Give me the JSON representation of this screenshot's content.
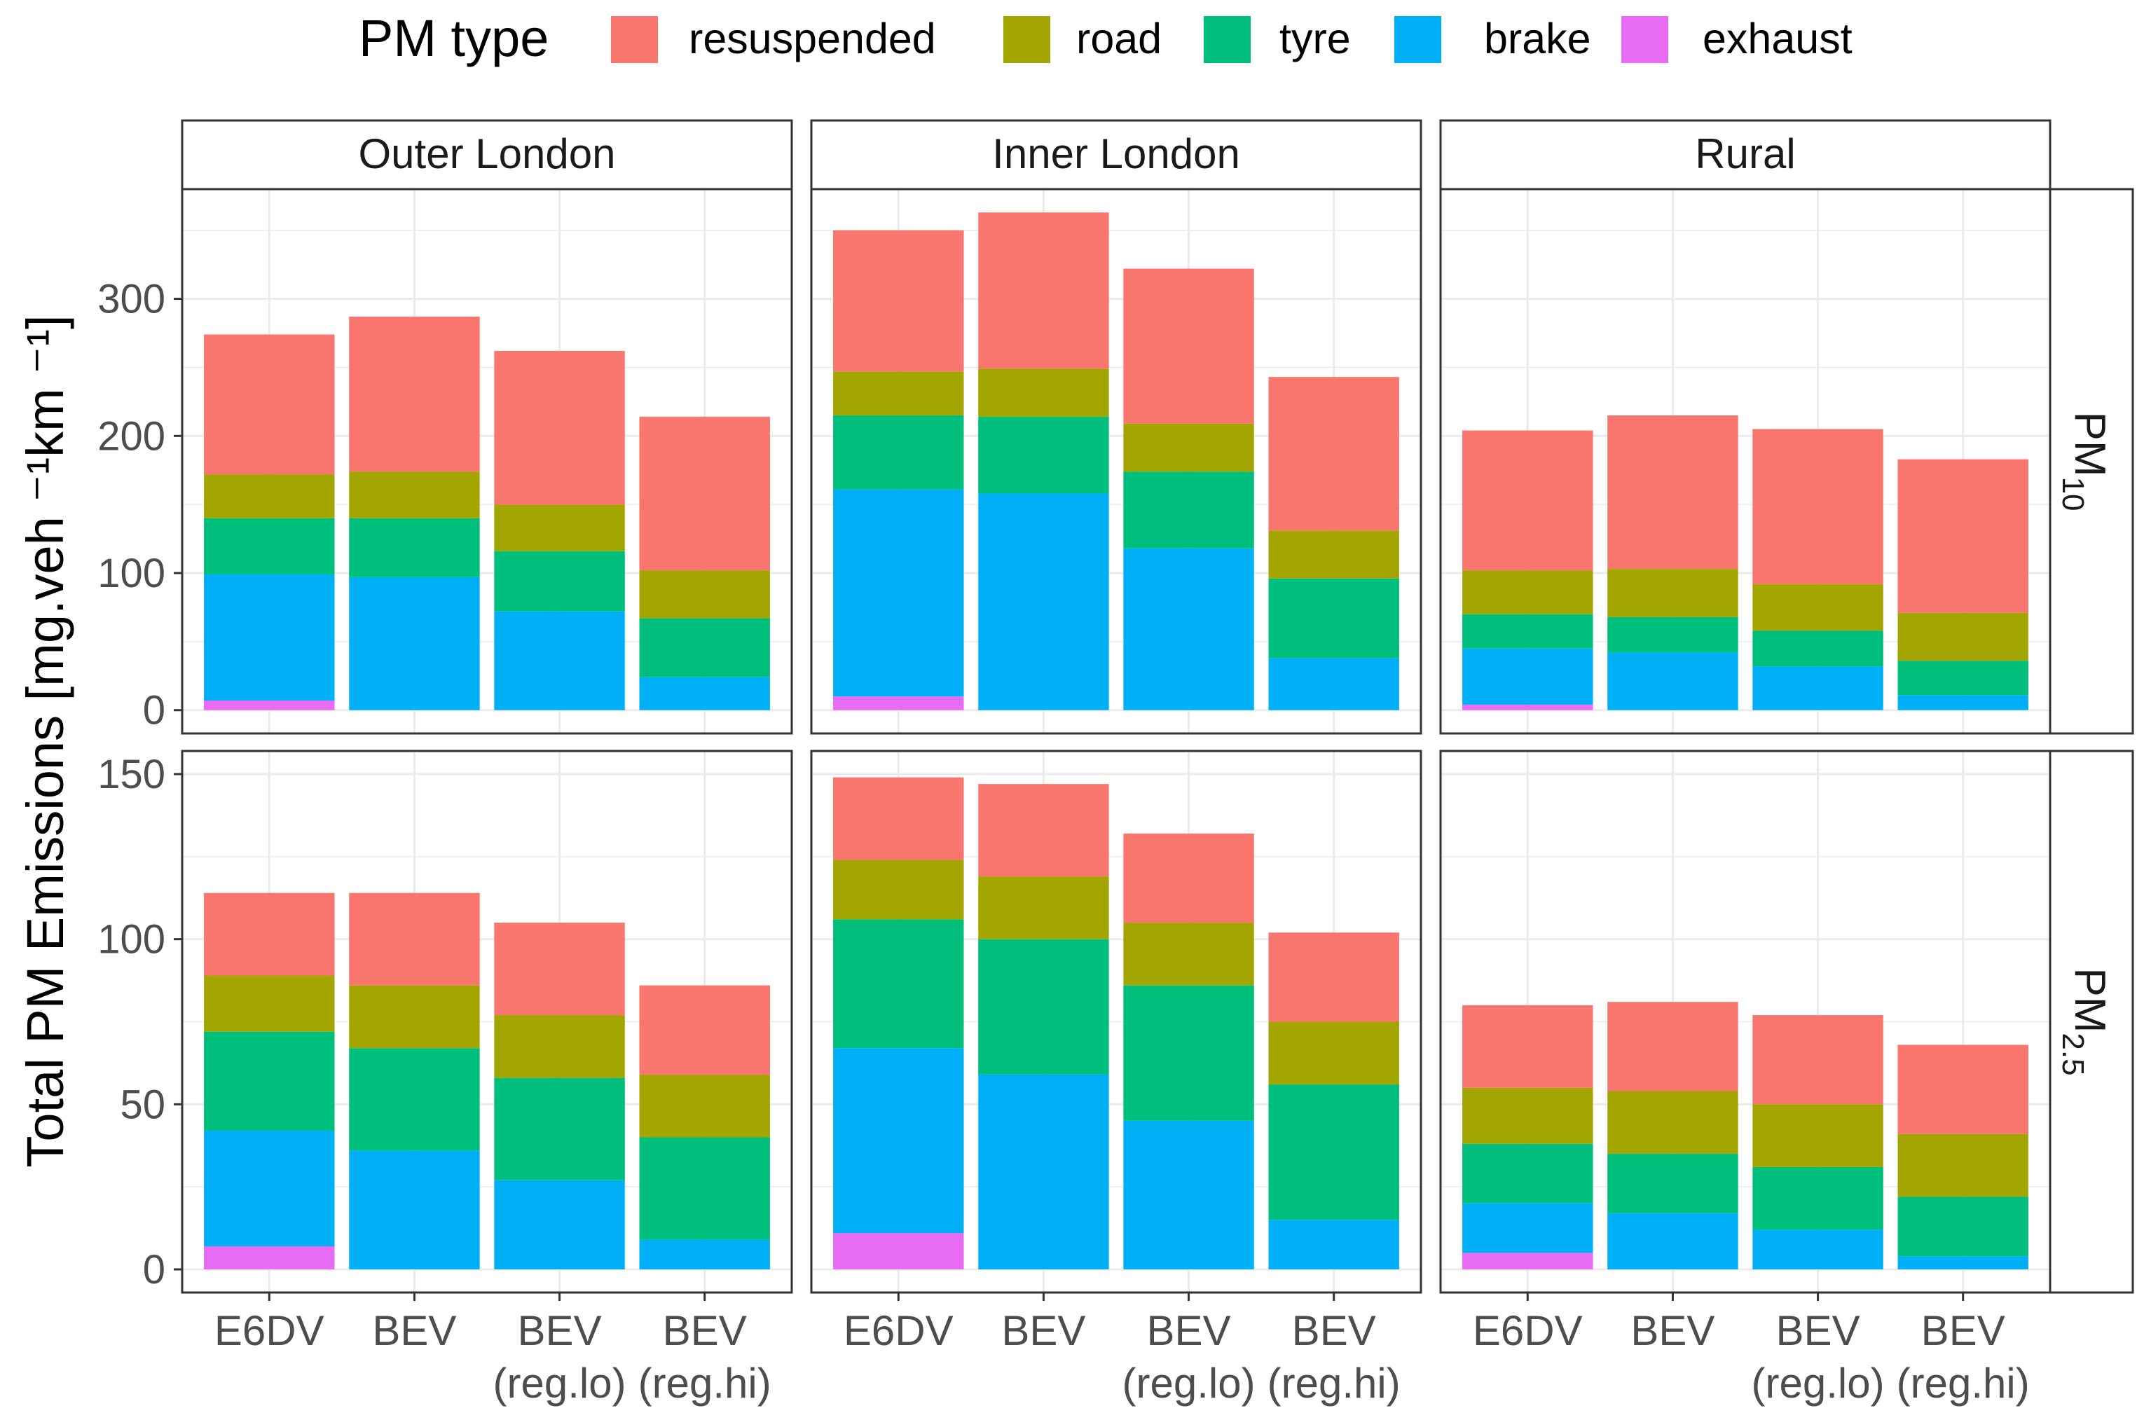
{
  "chart_data": {
    "type": "bar",
    "stacked": true,
    "title": "",
    "ylabel": "Total PM Emissions [mg.veh ⁻¹km ⁻¹]",
    "xlabel": "",
    "legend": {
      "title": "PM type",
      "position": "top",
      "entries": [
        {
          "name": "resuspended",
          "color": "#F8766D"
        },
        {
          "name": "road",
          "color": "#A3A500"
        },
        {
          "name": "tyre",
          "color": "#00BF7D"
        },
        {
          "name": "brake",
          "color": "#00B0F6"
        },
        {
          "name": "exhaust",
          "color": "#E76BF3"
        }
      ]
    },
    "stack_order": [
      "exhaust",
      "brake",
      "tyre",
      "road",
      "resuspended"
    ],
    "facet_columns": [
      "Outer London",
      "Inner London",
      "Rural"
    ],
    "facet_rows": [
      {
        "base": "PM",
        "sub": "10",
        "ylim": [
          -17,
          380
        ],
        "ticks": [
          0,
          100,
          200,
          300
        ]
      },
      {
        "base": "PM",
        "sub": "2.5",
        "ylim": [
          -7,
          157
        ],
        "ticks": [
          0,
          50,
          100,
          150
        ]
      }
    ],
    "categories": [
      {
        "line1": "E6DV",
        "line2": ""
      },
      {
        "line1": "BEV",
        "line2": ""
      },
      {
        "line1": "BEV",
        "line2": "(reg.lo)"
      },
      {
        "line1": "BEV",
        "line2": "(reg.hi)"
      }
    ],
    "grid": true,
    "panels": [
      {
        "row": 0,
        "col": 0,
        "bars": [
          {
            "exhaust": 7,
            "brake": 92,
            "tyre": 41,
            "road": 32,
            "resuspended": 102
          },
          {
            "exhaust": 0,
            "brake": 97,
            "tyre": 43,
            "road": 34,
            "resuspended": 113
          },
          {
            "exhaust": 0,
            "brake": 72,
            "tyre": 44,
            "road": 34,
            "resuspended": 112
          },
          {
            "exhaust": 0,
            "brake": 24,
            "tyre": 43,
            "road": 35,
            "resuspended": 112
          }
        ]
      },
      {
        "row": 0,
        "col": 1,
        "bars": [
          {
            "exhaust": 10,
            "brake": 151,
            "tyre": 54,
            "road": 32,
            "resuspended": 103
          },
          {
            "exhaust": 0,
            "brake": 158,
            "tyre": 56,
            "road": 35,
            "resuspended": 114
          },
          {
            "exhaust": 0,
            "brake": 118,
            "tyre": 56,
            "road": 35,
            "resuspended": 113
          },
          {
            "exhaust": 0,
            "brake": 38,
            "tyre": 58,
            "road": 35,
            "resuspended": 112
          }
        ]
      },
      {
        "row": 0,
        "col": 2,
        "bars": [
          {
            "exhaust": 4,
            "brake": 41,
            "tyre": 25,
            "road": 32,
            "resuspended": 102
          },
          {
            "exhaust": 0,
            "brake": 42,
            "tyre": 26,
            "road": 35,
            "resuspended": 112
          },
          {
            "exhaust": 0,
            "brake": 32,
            "tyre": 26,
            "road": 34,
            "resuspended": 113
          },
          {
            "exhaust": 0,
            "brake": 11,
            "tyre": 25,
            "road": 35,
            "resuspended": 112
          }
        ]
      },
      {
        "row": 1,
        "col": 0,
        "bars": [
          {
            "exhaust": 7,
            "brake": 35,
            "tyre": 30,
            "road": 17,
            "resuspended": 25
          },
          {
            "exhaust": 0,
            "brake": 36,
            "tyre": 31,
            "road": 19,
            "resuspended": 28
          },
          {
            "exhaust": 0,
            "brake": 27,
            "tyre": 31,
            "road": 19,
            "resuspended": 28
          },
          {
            "exhaust": 0,
            "brake": 9,
            "tyre": 31,
            "road": 19,
            "resuspended": 27
          }
        ]
      },
      {
        "row": 1,
        "col": 1,
        "bars": [
          {
            "exhaust": 11,
            "brake": 56,
            "tyre": 39,
            "road": 18,
            "resuspended": 25
          },
          {
            "exhaust": 0,
            "brake": 59,
            "tyre": 41,
            "road": 19,
            "resuspended": 28
          },
          {
            "exhaust": 0,
            "brake": 45,
            "tyre": 41,
            "road": 19,
            "resuspended": 27
          },
          {
            "exhaust": 0,
            "brake": 15,
            "tyre": 41,
            "road": 19,
            "resuspended": 27
          }
        ]
      },
      {
        "row": 1,
        "col": 2,
        "bars": [
          {
            "exhaust": 5,
            "brake": 15,
            "tyre": 18,
            "road": 17,
            "resuspended": 25
          },
          {
            "exhaust": 0,
            "brake": 17,
            "tyre": 18,
            "road": 19,
            "resuspended": 27
          },
          {
            "exhaust": 0,
            "brake": 12,
            "tyre": 19,
            "road": 19,
            "resuspended": 27
          },
          {
            "exhaust": 0,
            "brake": 4,
            "tyre": 18,
            "road": 19,
            "resuspended": 27
          }
        ]
      }
    ]
  }
}
